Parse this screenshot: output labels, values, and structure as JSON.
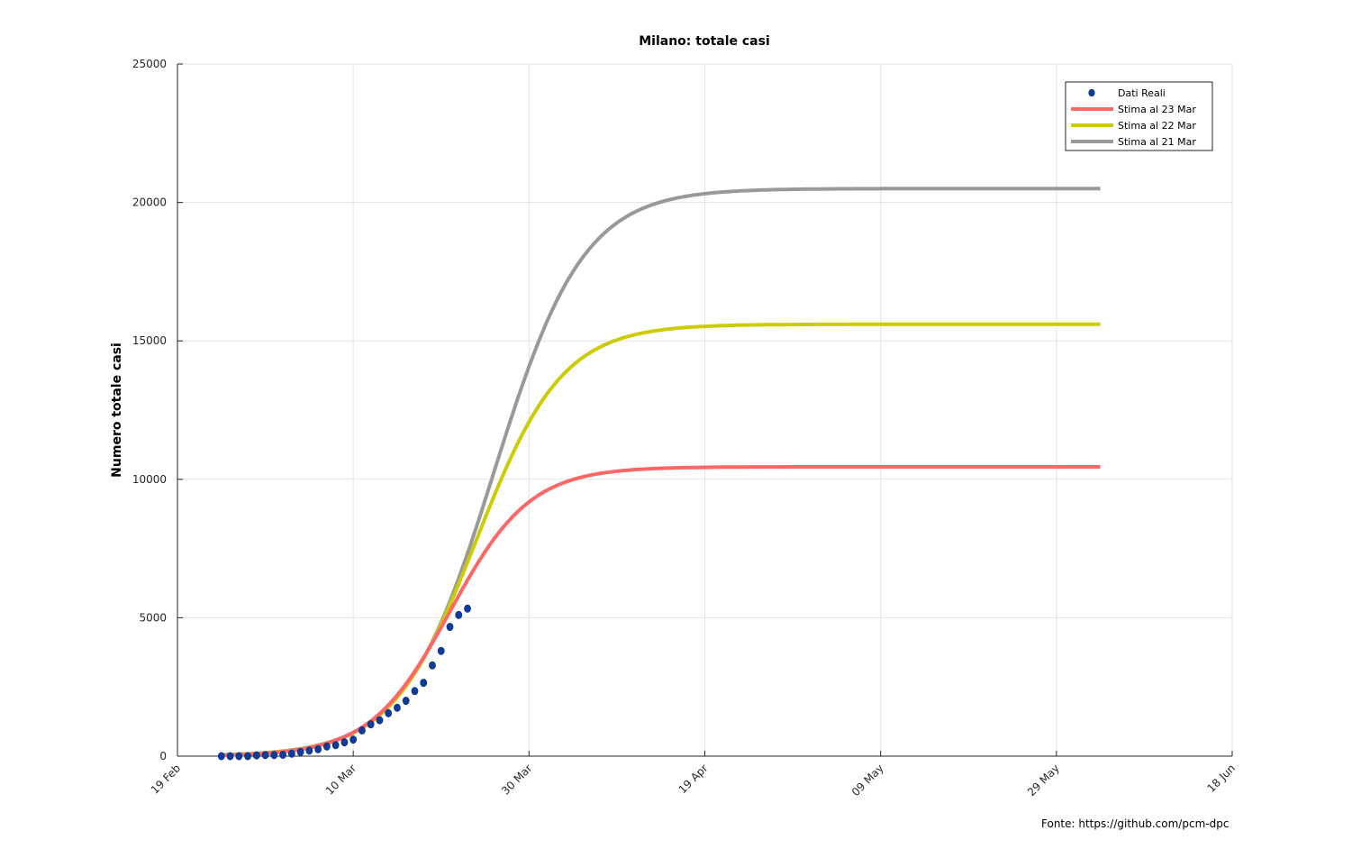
{
  "chart_data": {
    "type": "line",
    "title": "Milano: totale casi",
    "xlabel": "",
    "ylabel": "Numero totale casi",
    "x_axis": {
      "type": "date",
      "min": "2020-02-19",
      "max": "2020-06-18",
      "ticks": [
        "2020-02-19",
        "2020-03-10",
        "2020-03-30",
        "2020-04-19",
        "2020-05-09",
        "2020-05-29",
        "2020-06-18"
      ],
      "tick_labels": [
        "19 Feb",
        "10 Mar",
        "30 Mar",
        "19 Apr",
        "09 May",
        "29 May",
        "18 Jun"
      ]
    },
    "y_axis": {
      "min": 0,
      "max": 25000,
      "ticks": [
        0,
        5000,
        10000,
        15000,
        20000,
        25000
      ],
      "tick_labels": [
        "0",
        "5000",
        "10000",
        "15000",
        "20000",
        "25000"
      ]
    },
    "grid": true,
    "legend_position": "top-right",
    "series": [
      {
        "name": "Dati Reali",
        "style": "markers",
        "color": "#0d3c99",
        "points": [
          {
            "x": "2020-02-24",
            "y": 0
          },
          {
            "x": "2020-02-25",
            "y": 0
          },
          {
            "x": "2020-02-26",
            "y": 0
          },
          {
            "x": "2020-02-27",
            "y": 0
          },
          {
            "x": "2020-02-28",
            "y": 30
          },
          {
            "x": "2020-02-29",
            "y": 40
          },
          {
            "x": "2020-03-01",
            "y": 40
          },
          {
            "x": "2020-03-02",
            "y": 50
          },
          {
            "x": "2020-03-03",
            "y": 90
          },
          {
            "x": "2020-03-04",
            "y": 150
          },
          {
            "x": "2020-03-05",
            "y": 200
          },
          {
            "x": "2020-03-06",
            "y": 250
          },
          {
            "x": "2020-03-07",
            "y": 350
          },
          {
            "x": "2020-03-08",
            "y": 400
          },
          {
            "x": "2020-03-09",
            "y": 500
          },
          {
            "x": "2020-03-10",
            "y": 600
          },
          {
            "x": "2020-03-11",
            "y": 930
          },
          {
            "x": "2020-03-12",
            "y": 1150
          },
          {
            "x": "2020-03-13",
            "y": 1300
          },
          {
            "x": "2020-03-14",
            "y": 1550
          },
          {
            "x": "2020-03-15",
            "y": 1750
          },
          {
            "x": "2020-03-16",
            "y": 2000
          },
          {
            "x": "2020-03-17",
            "y": 2350
          },
          {
            "x": "2020-03-18",
            "y": 2650
          },
          {
            "x": "2020-03-19",
            "y": 3280
          },
          {
            "x": "2020-03-20",
            "y": 3800
          },
          {
            "x": "2020-03-21",
            "y": 4670
          },
          {
            "x": "2020-03-22",
            "y": 5100
          },
          {
            "x": "2020-03-23",
            "y": 5330
          }
        ]
      },
      {
        "name": "Stima al 23 Mar",
        "style": "line",
        "color": "#ff6666",
        "model": {
          "asymptote": 10450,
          "midpoint": "2020-03-21",
          "rate": 0.22
        },
        "x_range": [
          "2020-02-24",
          "2020-06-03"
        ]
      },
      {
        "name": "Stima al 22 Mar",
        "style": "line",
        "color": "#cccc00",
        "model": {
          "asymptote": 15600,
          "midpoint": "2020-03-24",
          "rate": 0.205
        },
        "x_range": [
          "2020-02-24",
          "2020-06-03"
        ]
      },
      {
        "name": "Stima al 21 Mar",
        "style": "line",
        "color": "#999999",
        "model": {
          "asymptote": 20500,
          "midpoint": "2020-03-26",
          "rate": 0.196
        },
        "x_range": [
          "2020-02-24",
          "2020-06-03"
        ]
      }
    ]
  },
  "source_text": "Fonte: https://github.com/pcm-dpc"
}
